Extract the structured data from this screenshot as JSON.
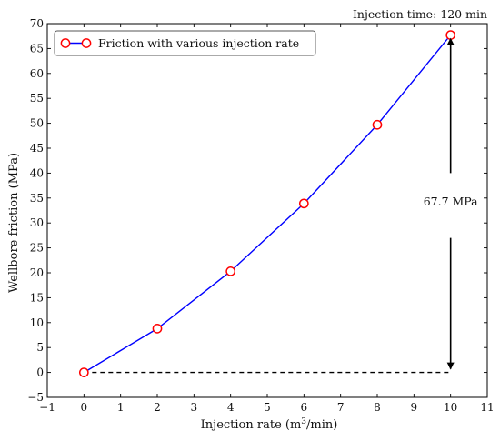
{
  "chart_data": {
    "type": "line",
    "corner_note": "Injection time: 120 min",
    "xlabel_main": "Injection rate (m",
    "xlabel_sup": "3",
    "xlabel_tail": "/min)",
    "ylabel": "Wellbore friction (MPa)",
    "xlim": [
      -1,
      11
    ],
    "ylim": [
      -5,
      70
    ],
    "x_ticks": [
      -1,
      0,
      1,
      2,
      3,
      4,
      5,
      6,
      7,
      8,
      9,
      10,
      11
    ],
    "y_ticks": [
      -5,
      0,
      5,
      10,
      15,
      20,
      25,
      30,
      35,
      40,
      45,
      50,
      55,
      60,
      65,
      70
    ],
    "x_tick_labels": [
      "−1",
      "0",
      "1",
      "2",
      "3",
      "4",
      "5",
      "6",
      "7",
      "8",
      "9",
      "10",
      "11"
    ],
    "y_tick_labels": [
      "−5",
      "0",
      "5",
      "10",
      "15",
      "20",
      "25",
      "30",
      "35",
      "40",
      "45",
      "50",
      "55",
      "60",
      "65",
      "70"
    ],
    "grid": false,
    "legend_position": "top-left",
    "series": [
      {
        "name": "Friction with various injection rate",
        "color": "#0000ff",
        "marker_edge_color": "#ff0000",
        "marker_face_color": "#ffffff",
        "x": [
          0,
          2,
          4,
          6,
          8,
          10
        ],
        "y": [
          0,
          8.8,
          20.3,
          33.9,
          49.7,
          67.7
        ]
      }
    ],
    "baseline": {
      "x": [
        0,
        10
      ],
      "y": 0,
      "style": "dashed",
      "color": "#000000"
    },
    "annotation": {
      "text": "67.7 MPa",
      "x": 10,
      "y_text": 33.5,
      "arrow_up": {
        "from": 40,
        "to": 67.7
      },
      "arrow_down": {
        "from": 27,
        "to": 0
      }
    }
  }
}
